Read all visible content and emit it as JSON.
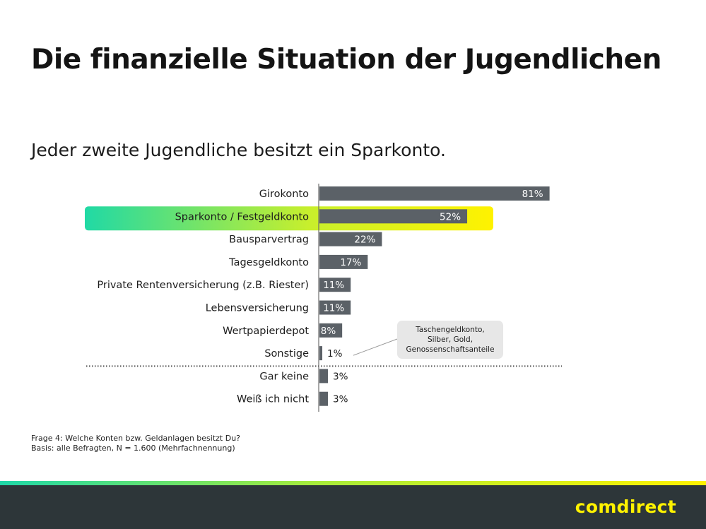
{
  "title": "Die finanzielle Situation der Jugendlichen",
  "subtitle": "Jeder zweite Jugendliche besitzt ein Sparkonto.",
  "chart_data": {
    "type": "bar",
    "orientation": "horizontal",
    "unit": "%",
    "xlim": [
      0,
      100
    ],
    "categories": [
      "Girokonto",
      "Sparkonto / Festgeldkonto",
      "Bausparvertrag",
      "Tagesgeldkonto",
      "Private Rentenversicherung (z.B. Riester)",
      "Lebensversicherung",
      "Wertpapierdepot",
      "Sonstige",
      "Gar keine",
      "Weiß ich nicht"
    ],
    "values": [
      81,
      52,
      22,
      17,
      11,
      11,
      8,
      1,
      3,
      3
    ],
    "labels": [
      "81%",
      "52%",
      "22%",
      "17%",
      "11%",
      "11%",
      "8%",
      "1%",
      "3%",
      "3%"
    ],
    "highlighted_category": "Sparkonto / Festgeldkonto",
    "divider_after": "Sonstige",
    "annotation": {
      "target": "Sonstige",
      "lines": [
        "Taschengeldkonto,",
        "Silber, Gold,",
        "Genossenschaftsanteile"
      ]
    }
  },
  "footnote": {
    "line1": "Frage 4: Welche Konten bzw. Geldanlagen besitzt Du?",
    "line2": "Basis: alle Befragten, N = 1.600 (Mehrfachnennung)"
  },
  "brand": "comdirect",
  "colors": {
    "bar": "#5b6167",
    "highlight_start": "#20d9a5",
    "highlight_mid": "#c8ef2c",
    "highlight_end": "#fff200",
    "footer": "#2d3639",
    "brand": "#fff200"
  }
}
